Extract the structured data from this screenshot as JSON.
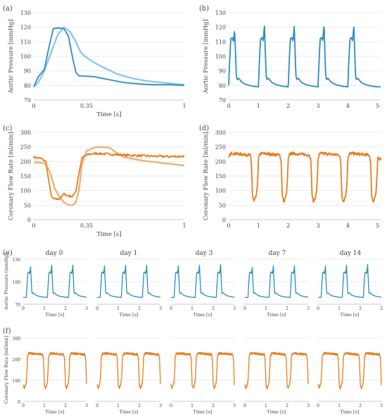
{
  "colors": {
    "pressure": "#2d8bc4",
    "pressure_light": "#8ec8ea",
    "flow": "#e87d1e",
    "flow_light": "#f1b07a",
    "grid": "#e2e2e2",
    "axis": "#bdbdbd"
  },
  "panels": {
    "a": "(a)",
    "b": "(b)",
    "c": "(c)",
    "d": "(d)",
    "e": "(e)",
    "f": "(f)"
  },
  "days": [
    "day 0",
    "day 1",
    "day 3",
    "day 7",
    "day 14"
  ],
  "chart_data": [
    {
      "id": "a",
      "type": "line",
      "xlabel": "Time [s]",
      "ylabel": "Aortic Pressure [mmHg]",
      "xlim": [
        0,
        1
      ],
      "ylim": [
        70,
        130
      ],
      "xticks": [
        0,
        0.35,
        1
      ],
      "xtick_labels": [
        "0",
        "0.35",
        "1"
      ],
      "yticks": [
        70,
        80,
        90,
        100,
        110,
        120,
        130
      ],
      "grid": "horizontal",
      "series": [
        {
          "color": "pressure_light",
          "x": [
            0,
            0.03,
            0.07,
            0.12,
            0.16,
            0.2,
            0.24,
            0.28,
            0.31,
            0.34,
            0.38,
            0.45,
            0.55,
            0.65,
            0.75,
            0.85,
            0.95,
            1
          ],
          "y": [
            79,
            82,
            90,
            104,
            115,
            120,
            117,
            110,
            103,
            100,
            97,
            93,
            88,
            85,
            83,
            82,
            81,
            80.5
          ]
        },
        {
          "color": "pressure",
          "x": [
            0,
            0.03,
            0.07,
            0.1,
            0.13,
            0.16,
            0.2,
            0.23,
            0.26,
            0.28,
            0.3,
            0.33,
            0.4,
            0.5,
            0.6,
            0.7,
            0.8,
            0.9,
            1
          ],
          "y": [
            79,
            86,
            91,
            106,
            119,
            119.5,
            119,
            114,
            98,
            89,
            86.5,
            86.5,
            86,
            84,
            82,
            81,
            80.5,
            80.5,
            80
          ]
        }
      ]
    },
    {
      "id": "b",
      "type": "line",
      "ylabel": "Aortic Pressure [mmHg]",
      "xlim": [
        0,
        5.1
      ],
      "ylim": [
        70,
        130
      ],
      "xticks": [
        0,
        1,
        2,
        3,
        4,
        5
      ],
      "xtick_labels": [
        "0",
        "1",
        "2",
        "3",
        "4",
        "5"
      ],
      "yticks": [
        70,
        80,
        90,
        100,
        110,
        120,
        130
      ],
      "grid": "horizontal",
      "beat_period": 1.0,
      "beat_starts": [
        0.0,
        1.0,
        2.0,
        3.0,
        4.0
      ],
      "peaks": [
        118,
        122,
        121,
        122,
        121
      ],
      "series": [
        {
          "color": "pressure",
          "beat_shape_t": [
            0,
            0.03,
            0.07,
            0.12,
            0.16,
            0.2,
            0.23,
            0.26,
            0.29,
            0.33,
            0.45,
            0.6,
            0.8,
            1.0
          ],
          "beat_shape_y": [
            80,
            96,
            112,
            113,
            110,
            116,
            100,
            86,
            84,
            85,
            82,
            80.5,
            79.5,
            79
          ]
        }
      ]
    },
    {
      "id": "c",
      "type": "line",
      "xlabel": "Time [s]",
      "ylabel": "Coronary Flow Rate [ml/min]",
      "xlim": [
        0,
        1
      ],
      "ylim": [
        0,
        300
      ],
      "xticks": [
        0,
        0.35,
        1
      ],
      "xtick_labels": [
        "0",
        "0.35",
        "1"
      ],
      "yticks": [
        0,
        50,
        100,
        150,
        200,
        250,
        300
      ],
      "grid": "horizontal",
      "series": [
        {
          "color": "flow_light",
          "x": [
            0,
            0.05,
            0.08,
            0.11,
            0.14,
            0.17,
            0.2,
            0.23,
            0.26,
            0.28,
            0.3,
            0.32,
            0.35,
            0.4,
            0.45,
            0.5,
            0.55,
            0.6,
            0.7,
            0.8,
            0.9,
            1
          ],
          "y": [
            197,
            196,
            192,
            160,
            105,
            80,
            60,
            50,
            50,
            60,
            100,
            190,
            236,
            248,
            250,
            248,
            230,
            215,
            205,
            198,
            192,
            186
          ],
          "noise": 0
        },
        {
          "color": "flow",
          "x": [
            0,
            0.05,
            0.08,
            0.1,
            0.12,
            0.14,
            0.17,
            0.2,
            0.23,
            0.26,
            0.28,
            0.3,
            0.32,
            0.34,
            0.37,
            0.42,
            0.5,
            0.6,
            0.7,
            0.8,
            0.9,
            1
          ],
          "y": [
            215,
            210,
            200,
            130,
            75,
            70,
            72,
            88,
            82,
            80,
            100,
            160,
            210,
            220,
            225,
            228,
            225,
            222,
            220,
            218,
            217,
            218
          ],
          "noise": 4
        }
      ]
    },
    {
      "id": "d",
      "type": "line",
      "ylabel": "Coronary Flow Rate [ml/min]",
      "xlim": [
        0,
        5.1
      ],
      "ylim": [
        0,
        300
      ],
      "xticks": [
        0,
        1,
        2,
        3,
        4,
        5
      ],
      "xtick_labels": [
        "0",
        "1",
        "2",
        "3",
        "4",
        "5"
      ],
      "yticks": [
        0,
        50,
        100,
        150,
        200,
        250,
        300
      ],
      "grid": "horizontal",
      "beat_period": 1.0,
      "beat_starts": [
        0.0,
        1.0,
        2.0,
        3.0,
        4.0
      ],
      "series": [
        {
          "color": "flow",
          "noise": 5,
          "beat_shape_t": [
            0,
            0.05,
            0.1,
            0.72,
            0.76,
            0.8,
            0.85,
            0.9,
            0.94,
            0.97,
            1.0
          ],
          "beat_shape_y": [
            210,
            225,
            228,
            222,
            200,
            80,
            62,
            75,
            90,
            130,
            210
          ]
        }
      ]
    },
    {
      "id": "e",
      "type": "line",
      "ylabel": "Aortic Pressure [mmHg]",
      "xlabel": "Time [s]",
      "small_multiples": [
        "day 0",
        "day 1",
        "day 3",
        "day 7",
        "day 14"
      ],
      "xlim": [
        0,
        3
      ],
      "ylim": [
        70,
        130
      ],
      "xticks": [
        0,
        1,
        2,
        3
      ],
      "yticks": [
        70,
        100,
        130
      ],
      "grid": "horizontal",
      "beat_starts": [
        0.15,
        1.15,
        2.15
      ],
      "peaks_by_panel": [
        [
          120,
          122,
          122
        ],
        [
          121,
          122,
          122
        ],
        [
          121,
          122,
          123
        ],
        [
          119,
          121,
          121
        ],
        [
          121,
          122,
          123
        ]
      ],
      "series": [
        {
          "color": "pressure",
          "beat_shape_t": [
            0,
            0.03,
            0.07,
            0.12,
            0.16,
            0.2,
            0.23,
            0.26,
            0.29,
            0.33,
            0.45,
            0.6,
            0.8,
            1.0
          ],
          "beat_shape_y": [
            80,
            96,
            112,
            113,
            110,
            116,
            100,
            86,
            84,
            85,
            82,
            80.5,
            79.5,
            79
          ]
        }
      ]
    },
    {
      "id": "f",
      "type": "line",
      "ylabel": "Coronary Flow Rate [ml/min]",
      "xlabel": "Time [s]",
      "small_multiples": [
        "day 0",
        "day 1",
        "day 3",
        "day 7",
        "day 14"
      ],
      "xlim": [
        0,
        3
      ],
      "ylim": [
        0,
        300
      ],
      "xticks": [
        0,
        1,
        2,
        3
      ],
      "yticks": [
        0,
        100,
        200,
        300
      ],
      "grid": "horizontal",
      "beat_starts": [
        -0.8,
        0.2,
        1.2,
        2.2
      ],
      "series": [
        {
          "color": "flow",
          "noise": 5,
          "beat_shape_t": [
            0,
            0.05,
            0.1,
            0.72,
            0.76,
            0.8,
            0.85,
            0.9,
            0.94,
            0.97,
            1.0
          ],
          "beat_shape_y": [
            210,
            225,
            228,
            222,
            200,
            80,
            62,
            75,
            90,
            130,
            210
          ]
        }
      ]
    }
  ]
}
